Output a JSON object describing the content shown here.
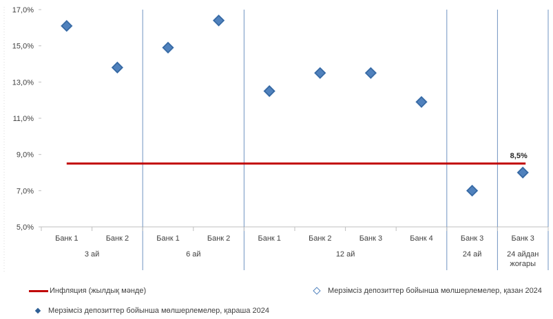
{
  "chart_data": {
    "type": "scatter",
    "ylim": [
      5.0,
      17.0
    ],
    "yticks": [
      "5,0%",
      "7,0%",
      "9,0%",
      "11,0%",
      "13,0%",
      "15,0%",
      "17,0%"
    ],
    "categories": [
      "Банк 1",
      "Банк 2",
      "Банк 1",
      "Банк 2",
      "Банк 1",
      "Банк 2",
      "Банк 3",
      "Банк 4",
      "Банк 3",
      "Банк 3"
    ],
    "groups": [
      {
        "label": "3 ай",
        "lines": [
          "3 ай"
        ],
        "start": 0,
        "end": 2
      },
      {
        "label": "6 ай",
        "lines": [
          "6 ай"
        ],
        "start": 2,
        "end": 4
      },
      {
        "label": "12 ай",
        "lines": [
          "12 ай"
        ],
        "start": 4,
        "end": 8
      },
      {
        "label": "24 ай",
        "lines": [
          "24 ай"
        ],
        "start": 8,
        "end": 9
      },
      {
        "label": "24 айдан жоғары",
        "lines": [
          "24 айдан",
          "жоғары"
        ],
        "start": 9,
        "end": 10
      }
    ],
    "series": [
      {
        "name": "Мерзімсіз депозиттер бойынша мөлшерлемелер, қазан 2024",
        "marker": "diamond-hollow",
        "values": [
          16.1,
          13.8,
          14.9,
          16.4,
          12.5,
          13.5,
          13.5,
          11.9,
          7.0,
          8.0
        ]
      },
      {
        "name": "Мерзімсіз депозиттер бойынша мөлшерлемелер, қараша 2024",
        "marker": "diamond-filled",
        "values": [
          16.1,
          13.8,
          14.9,
          16.4,
          12.5,
          13.5,
          13.5,
          11.9,
          7.0,
          8.0
        ]
      }
    ],
    "reference_line": {
      "name": "Инфляция (жылдық мәнде)",
      "value": 8.5,
      "label": "8,5%",
      "color": "#c00000"
    },
    "colors": {
      "marker_fill": "#4f81bd",
      "marker_edge": "#2e5f95",
      "divider": "#6f93c1",
      "inflation": "#c00000"
    }
  },
  "legend": {
    "inflation": "Инфляция (жылдық мәнде)",
    "oct": "Мерзімсіз депозиттер бойынша мөлшерлемелер, қазан 2024",
    "nov": "Мерзімсіз депозиттер бойынша мөлшерлемелер, қараша 2024"
  }
}
